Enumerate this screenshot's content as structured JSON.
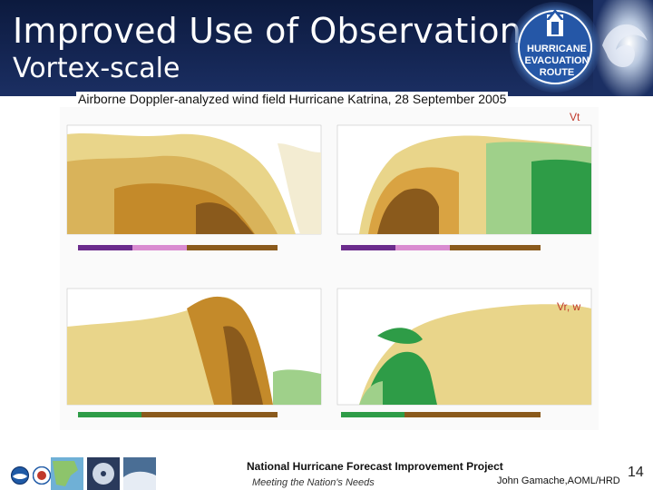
{
  "slide": {
    "title_line1": "Improved Use of Observations:",
    "title_line2": "Vortex-scale",
    "caption": "Airborne Doppler-analyzed wind field Hurricane Katrina, 28 September 2005",
    "panel_label_top": "Vt",
    "panel_label_bottom": "Vr, w",
    "sign_lines": [
      "HURRICANE",
      "EVACUATION",
      "ROUTE"
    ],
    "footer_title": "National Hurricane Forecast Improvement Project",
    "footer_subtitle": "Meeting the Nation's Needs",
    "footer_author": "John Gamache,AOML/HRD",
    "page_number": "14"
  },
  "icons": {
    "sign": "hurricane-evacuation-route-sign",
    "storm": "hurricane-satellite-image",
    "logo_left": "noaa-logo",
    "logo_right": "nws-logo"
  },
  "colors": {
    "header_bg": "#142552",
    "accent_red": "#c0392b",
    "wind_green": "#2e9c47",
    "wind_brown": "#8a5a1c",
    "wind_orange": "#d89a2c",
    "wind_yellow": "#e9d58a"
  }
}
